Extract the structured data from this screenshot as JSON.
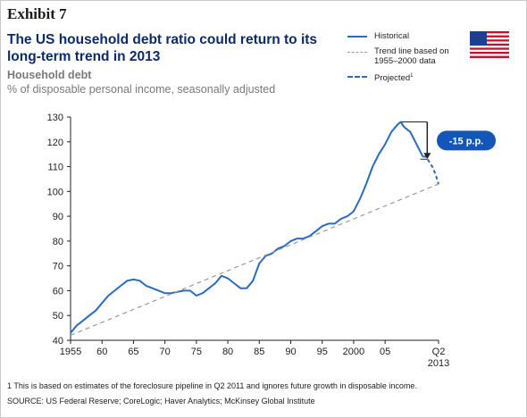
{
  "exhibit": "Exhibit 7",
  "title": "The US household debt ratio could return to its long-term trend in 2013",
  "subtitle": "Household debt",
  "units": "% of disposable personal income, seasonally adjusted",
  "legend": {
    "historical": "Historical",
    "trend": "Trend line based on 1955–2000 data",
    "projected": "Projected",
    "projected_note_marker": "1"
  },
  "annotation": "-15 p.p.",
  "footnote": "1  This is based on estimates of the foreclosure pipeline in Q2 2011 and ignores future growth in disposable income.",
  "source": "SOURCE: US Federal Reserve; CoreLogic; Haver Analytics; McKinsey Global Institute",
  "colors": {
    "historical": "#2a6bbf",
    "trend": "#9a9a9a",
    "badge": "#1456b8",
    "title": "#0b2b6b"
  },
  "flag_icon": "us-flag-icon",
  "chart_data": {
    "type": "line",
    "xlim": [
      1955,
      2013.5
    ],
    "ylim": [
      40,
      130
    ],
    "yticks": [
      40,
      50,
      60,
      70,
      80,
      90,
      100,
      110,
      120,
      130
    ],
    "xtick_labels": [
      {
        "x": 1955,
        "label": "1955"
      },
      {
        "x": 1960,
        "label": "60"
      },
      {
        "x": 1965,
        "label": "65"
      },
      {
        "x": 1970,
        "label": "70"
      },
      {
        "x": 1975,
        "label": "75"
      },
      {
        "x": 1980,
        "label": "80"
      },
      {
        "x": 1985,
        "label": "85"
      },
      {
        "x": 1990,
        "label": "90"
      },
      {
        "x": 1995,
        "label": "95"
      },
      {
        "x": 2000,
        "label": "2000"
      },
      {
        "x": 2005,
        "label": "05"
      },
      {
        "x": 2013.5,
        "label": "Q2\n2013"
      }
    ],
    "series": [
      {
        "name": "Historical",
        "style": "solid",
        "x": [
          1955,
          1956,
          1957,
          1958,
          1959,
          1960,
          1961,
          1962,
          1963,
          1964,
          1965,
          1966,
          1967,
          1968,
          1969,
          1970,
          1971,
          1972,
          1973,
          1974,
          1975,
          1976,
          1977,
          1978,
          1979,
          1980,
          1981,
          1982,
          1983,
          1984,
          1985,
          1986,
          1987,
          1988,
          1989,
          1990,
          1991,
          1992,
          1993,
          1994,
          1995,
          1996,
          1997,
          1998,
          1999,
          2000,
          2001,
          2002,
          2003,
          2004,
          2005,
          2006,
          2007,
          2007.5,
          2008,
          2009,
          2010,
          2011
        ],
        "y": [
          43,
          46,
          48,
          50,
          52,
          55,
          58,
          60,
          62,
          64,
          64.5,
          64,
          62,
          61,
          60,
          59,
          59,
          59.5,
          60,
          60,
          58,
          59,
          61,
          63,
          66,
          65,
          63,
          61,
          61,
          64,
          71,
          74,
          75,
          77,
          78,
          80,
          81,
          81,
          82,
          84,
          86,
          87,
          87,
          89,
          90,
          92,
          97,
          103,
          110,
          115,
          119,
          124,
          127,
          128,
          126,
          124,
          119,
          114
        ]
      },
      {
        "name": "Trend line based on 1955–2000 data",
        "style": "dashed",
        "x": [
          1955,
          2013.5
        ],
        "y": [
          42,
          103
        ]
      },
      {
        "name": "Projected",
        "style": "dashed",
        "x": [
          2011,
          2011.5,
          2012,
          2012.5,
          2013,
          2013.5
        ],
        "y": [
          114,
          114,
          112,
          110,
          107,
          103
        ]
      }
    ],
    "annotation": {
      "from_y": 128,
      "to_y": 113,
      "label": "-15 p.p."
    }
  }
}
